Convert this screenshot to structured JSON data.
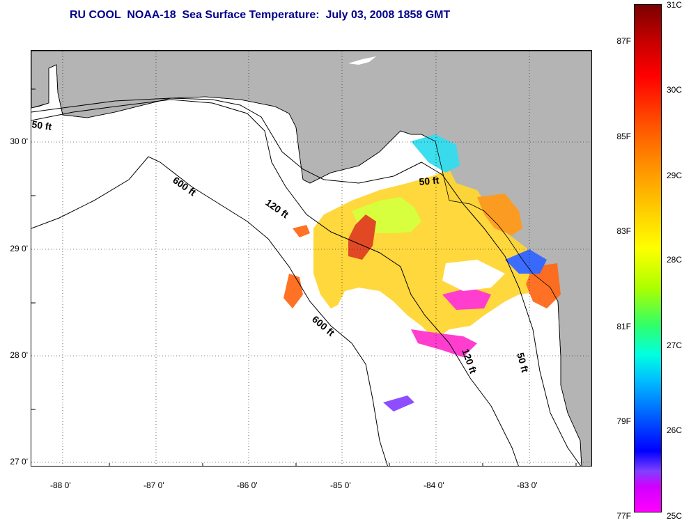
{
  "title": "RU COOL  NOAA-18  Sea Surface Temperature:  July 03, 2008 1858 GMT",
  "lat_labels": [
    "30 0'",
    "29 0'",
    "28 0'",
    "27 0'"
  ],
  "lon_labels": [
    "-88 0'",
    "-87 0'",
    "-86 0'",
    "-85 0'",
    "-84 0'",
    "-83 0'"
  ],
  "depth_labels": {
    "d50_west": "50 ft",
    "d600_north": "600 ft",
    "d120_mid": "120 ft",
    "d50_east": "50 ft",
    "d600_south": "600 ft",
    "d120_south": "120 ft",
    "d50_south": "50 ft"
  },
  "colorbar": {
    "fahrenheit": [
      "87F",
      "85F",
      "83F",
      "81F",
      "79F",
      "77F"
    ],
    "celsius": [
      "31C",
      "30C",
      "29C",
      "28C",
      "27C",
      "26C",
      "25C"
    ]
  },
  "colors": {
    "title": "#00008b",
    "land": "#b4b4b4",
    "ocean": "#ffffff"
  }
}
